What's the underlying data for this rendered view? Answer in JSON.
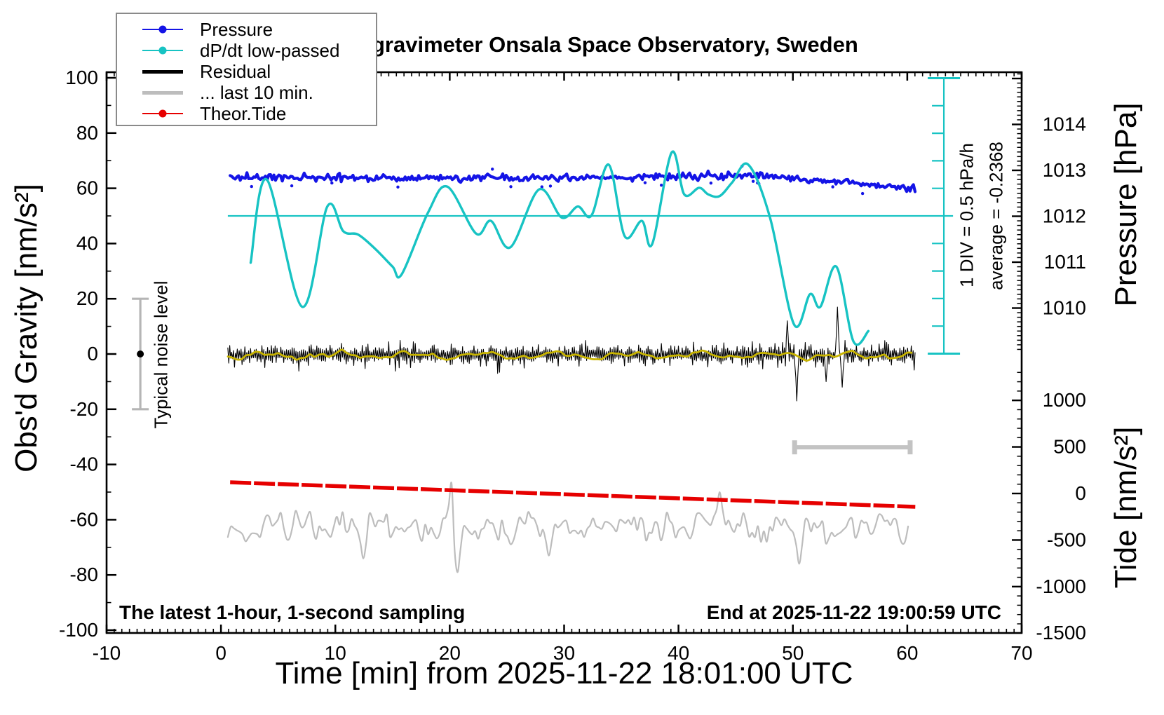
{
  "chart_data": {
    "type": "line",
    "title": "SCG_054 gravimeter Onsala Space Observatory, Sweden",
    "xlabel": "Time [min] from 2025-11-22 18:01:00 UTC",
    "notes": {
      "bottom_left": "The latest 1-hour, 1-second sampling",
      "bottom_right": "End at 2025-11-22 19:00:59 UTC",
      "div_scale": "1 DIV = 0.5 hPa/h",
      "average": "average = -0.2368",
      "noise_label": "Typical noise level"
    },
    "axes": {
      "x": {
        "label": "Time [min] from 2025-11-22 18:01:00 UTC",
        "range": [
          -10,
          70
        ],
        "major_ticks": [
          -10,
          0,
          10,
          20,
          30,
          40,
          50,
          60,
          70
        ],
        "minor_step": 0.6667,
        "grid": false
      },
      "y_left": {
        "label": "Obs'd Gravity [nm/s²]",
        "range": [
          -100,
          100
        ],
        "major_ticks": [
          100,
          80,
          60,
          40,
          20,
          0,
          -20,
          -40,
          -60,
          -80,
          -100
        ],
        "minor_step": 10
      },
      "y_right_pressure": {
        "label": "Pressure [hPa]",
        "major_ticks": [
          1014,
          1013,
          1012,
          1011,
          1010
        ],
        "minor_step": 0.1
      },
      "y_right_tide": {
        "label": "Tide [nm/s²]",
        "major_ticks": [
          1000,
          500,
          0,
          -500,
          -1000,
          -1500
        ],
        "minor_step": 100
      }
    },
    "colors": {
      "pressure": "#1414e6",
      "dpdt": "#17c3c3",
      "residual": "#000000",
      "last10": "#bdbdbd",
      "tide": "#e60000",
      "smoothed_residual": "#c8b400",
      "noise_bar": "#b5b5b5",
      "frame": "#000000"
    },
    "legend": {
      "position": "top-left",
      "items": [
        {
          "label": "Pressure",
          "color": "#1414e6",
          "dot": true,
          "thick": false
        },
        {
          "label": "dP/dt low-passed",
          "color": "#17c3c3",
          "dot": true,
          "thick": false
        },
        {
          "label": "Residual",
          "color": "#000000",
          "dot": false,
          "thick": true
        },
        {
          "label": "... last 10 min.",
          "color": "#bdbdbd",
          "dot": false,
          "thick": true
        },
        {
          "label": "Theor.Tide",
          "color": "#e60000",
          "dot": true,
          "thick": false
        }
      ]
    },
    "series": {
      "pressure": {
        "units": "hPa",
        "points": [
          [
            0.8,
            1012.86
          ],
          [
            5,
            1012.85
          ],
          [
            10,
            1012.84
          ],
          [
            15,
            1012.83
          ],
          [
            20,
            1012.83
          ],
          [
            25,
            1012.83
          ],
          [
            30,
            1012.84
          ],
          [
            35,
            1012.85
          ],
          [
            40,
            1012.86
          ],
          [
            43,
            1012.89
          ],
          [
            46,
            1012.9
          ],
          [
            48,
            1012.88
          ],
          [
            50,
            1012.83
          ],
          [
            52,
            1012.79
          ],
          [
            54,
            1012.76
          ],
          [
            56,
            1012.71
          ],
          [
            58,
            1012.67
          ],
          [
            59.5,
            1012.65
          ],
          [
            60.7,
            1012.62
          ]
        ],
        "noise_band_hPa": 0.1
      },
      "dpdt_low_passed": {
        "units": "hPa/h",
        "zero_line_x_range": [
          0.6,
          64.0
        ],
        "points": [
          [
            2.6,
            -0.85
          ],
          [
            4.0,
            0.66
          ],
          [
            7.1,
            -1.65
          ],
          [
            9.3,
            0.17
          ],
          [
            10.7,
            -0.28
          ],
          [
            12.0,
            -0.34
          ],
          [
            13.5,
            -0.6
          ],
          [
            15.0,
            -0.92
          ],
          [
            15.8,
            -1.06
          ],
          [
            18.1,
            0.06
          ],
          [
            19.8,
            0.53
          ],
          [
            22.3,
            -0.32
          ],
          [
            23.6,
            -0.09
          ],
          [
            25.3,
            -0.57
          ],
          [
            27.8,
            0.48
          ],
          [
            29.8,
            -0.03
          ],
          [
            31.2,
            0.17
          ],
          [
            32.4,
            0.01
          ],
          [
            33.9,
            0.93
          ],
          [
            35.3,
            -0.37
          ],
          [
            36.8,
            -0.09
          ],
          [
            37.7,
            -0.51
          ],
          [
            39.4,
            1.15
          ],
          [
            40.5,
            0.39
          ],
          [
            41.8,
            0.51
          ],
          [
            42.6,
            0.39
          ],
          [
            43.6,
            0.36
          ],
          [
            44.7,
            0.61
          ],
          [
            46.1,
            0.93
          ],
          [
            48.0,
            -0.03
          ],
          [
            50.1,
            -1.97
          ],
          [
            51.5,
            -1.42
          ],
          [
            52.4,
            -1.65
          ],
          [
            53.8,
            -0.92
          ],
          [
            55.3,
            -2.28
          ],
          [
            56.6,
            -2.09
          ]
        ]
      },
      "residual": {
        "units": "nm/s²",
        "mean": 0,
        "typical_peak_to_peak": 14,
        "x_range": [
          0.6,
          60.7
        ],
        "spikes": [
          [
            49.5,
            12
          ],
          [
            50.3,
            -17
          ],
          [
            52.9,
            -10
          ],
          [
            53.9,
            17
          ],
          [
            54.3,
            -12
          ]
        ]
      },
      "residual_smoothed": {
        "units": "nm/s²",
        "baseline": 0,
        "amplitude": 1
      },
      "residual_last10": {
        "units": "nm/s²",
        "baseline_gravity": -62.5,
        "x_range": [
          0.6,
          60.2
        ],
        "spikes": [
          [
            12.5,
            -74
          ],
          [
            20.2,
            -47
          ],
          [
            20.6,
            -79
          ],
          [
            28.6,
            -73
          ],
          [
            43.5,
            -50
          ],
          [
            50.6,
            -76
          ]
        ]
      },
      "theoretical_tide": {
        "units": "nm/s²",
        "points": [
          [
            0.8,
            120
          ],
          [
            60.7,
            -143
          ]
        ]
      }
    },
    "markers": {
      "dpdt_ruler": {
        "x_min": 63.2,
        "divisions": 10,
        "div_value_hPa_per_h": 0.5
      },
      "noise_bar": {
        "x_min": -7.05,
        "gravity_range": [
          -20,
          20
        ],
        "dot_at": 0
      },
      "last10_bar": {
        "x_range": [
          50.15,
          60.25
        ],
        "gravity": -33.8
      }
    }
  }
}
